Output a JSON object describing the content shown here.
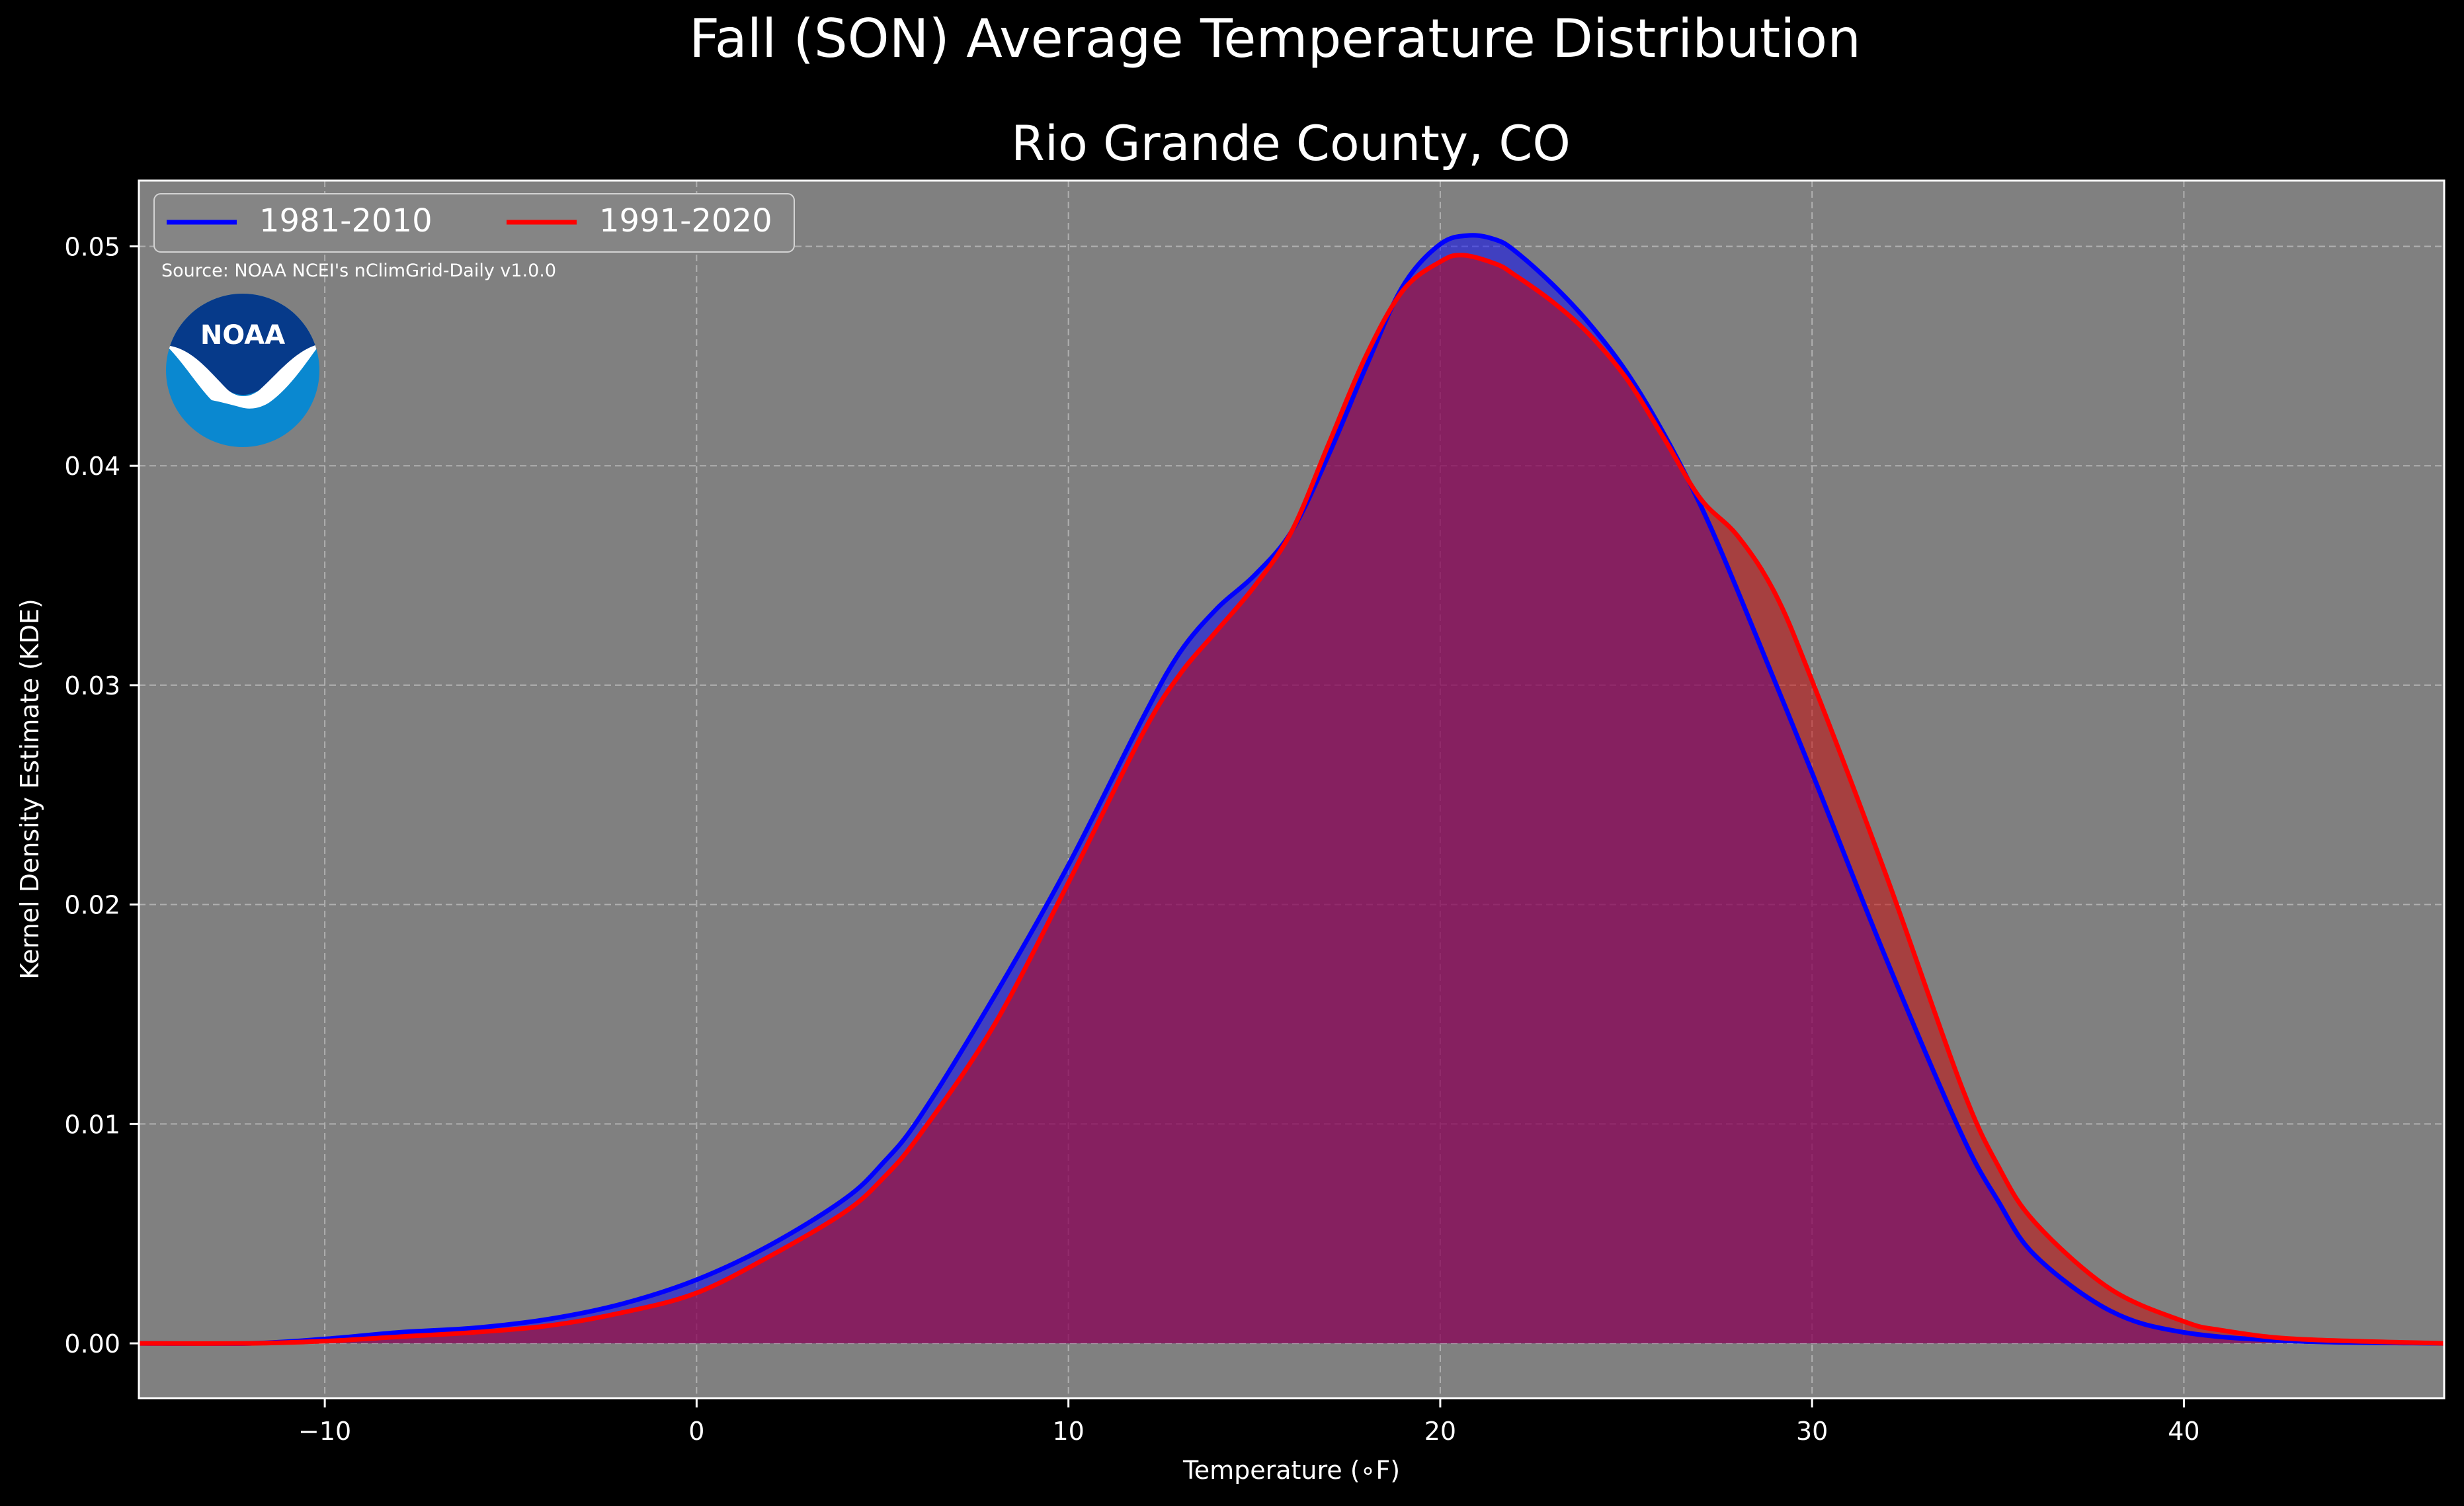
{
  "chart_data": {
    "type": "area",
    "title": "Fall (SON) Average Temperature Distribution",
    "subtitle": "Rio Grande County, CO",
    "xlabel": "Temperature ($^\\circ$F)",
    "xlabel_display": "Temperature (∘F)",
    "ylabel": "Kernel Density Estimate (KDE)",
    "xlim": [
      -15,
      47
    ],
    "ylim": [
      -0.0025,
      0.053
    ],
    "x_ticks": [
      -10,
      0,
      10,
      20,
      30,
      40
    ],
    "x_tick_labels": [
      "−10",
      "0",
      "10",
      "20",
      "30",
      "40"
    ],
    "y_ticks": [
      0.0,
      0.01,
      0.02,
      0.03,
      0.04,
      0.05
    ],
    "y_tick_labels": [
      "0.00",
      "0.01",
      "0.02",
      "0.03",
      "0.04",
      "0.05"
    ],
    "grid": true,
    "legend_position": "top-left",
    "source_note": "Source: NOAA NCEI's nClimGrid-Daily v1.0.0",
    "logo_text": "NOAA",
    "background_color": "#808080",
    "figure_background": "#000000",
    "series": [
      {
        "name": "1981-2010",
        "color": "#0000ff",
        "fill_color": "#0000ff",
        "x": [
          -15,
          -12,
          -10,
          -8,
          -6,
          -4,
          -2,
          0,
          2,
          4,
          5,
          6,
          8,
          10,
          12,
          13,
          14,
          15,
          16,
          17,
          18,
          19,
          20,
          20.8,
          21.5,
          22,
          23,
          24,
          25,
          26,
          27,
          28,
          30,
          32,
          34,
          35,
          36,
          38,
          40,
          43,
          47
        ],
        "values": [
          0.0,
          0.0,
          0.0002,
          0.0005,
          0.0007,
          0.0011,
          0.0018,
          0.0029,
          0.0045,
          0.0066,
          0.0082,
          0.0103,
          0.0158,
          0.0218,
          0.0285,
          0.0315,
          0.0335,
          0.035,
          0.037,
          0.0405,
          0.0445,
          0.0482,
          0.0501,
          0.0505,
          0.0503,
          0.0498,
          0.0483,
          0.0465,
          0.0443,
          0.0415,
          0.0382,
          0.0343,
          0.026,
          0.0175,
          0.0096,
          0.0065,
          0.004,
          0.0015,
          0.0005,
          0.0001,
          0.0
        ]
      },
      {
        "name": "1991-2020",
        "color": "#ff0000",
        "fill_color": "#cc0000",
        "x": [
          -15,
          -12,
          -10,
          -8,
          -6,
          -4,
          -2,
          0,
          2,
          4,
          5,
          6,
          8,
          10,
          12,
          13,
          14,
          15,
          16,
          17,
          18,
          19,
          20,
          20.6,
          21.5,
          22,
          23,
          24,
          25,
          26,
          27,
          28,
          29,
          30,
          32,
          34,
          35,
          36,
          38,
          40,
          41,
          43,
          47
        ],
        "values": [
          0.0,
          0.0,
          0.0001,
          0.0003,
          0.0005,
          0.0008,
          0.0014,
          0.0023,
          0.004,
          0.006,
          0.0075,
          0.0095,
          0.0145,
          0.021,
          0.0278,
          0.0305,
          0.0325,
          0.0345,
          0.037,
          0.041,
          0.045,
          0.048,
          0.0493,
          0.0496,
          0.0492,
          0.0487,
          0.0475,
          0.046,
          0.044,
          0.0413,
          0.0385,
          0.0368,
          0.0342,
          0.0302,
          0.0213,
          0.0118,
          0.0081,
          0.0055,
          0.0025,
          0.001,
          0.0006,
          0.0002,
          0.0
        ]
      }
    ]
  }
}
